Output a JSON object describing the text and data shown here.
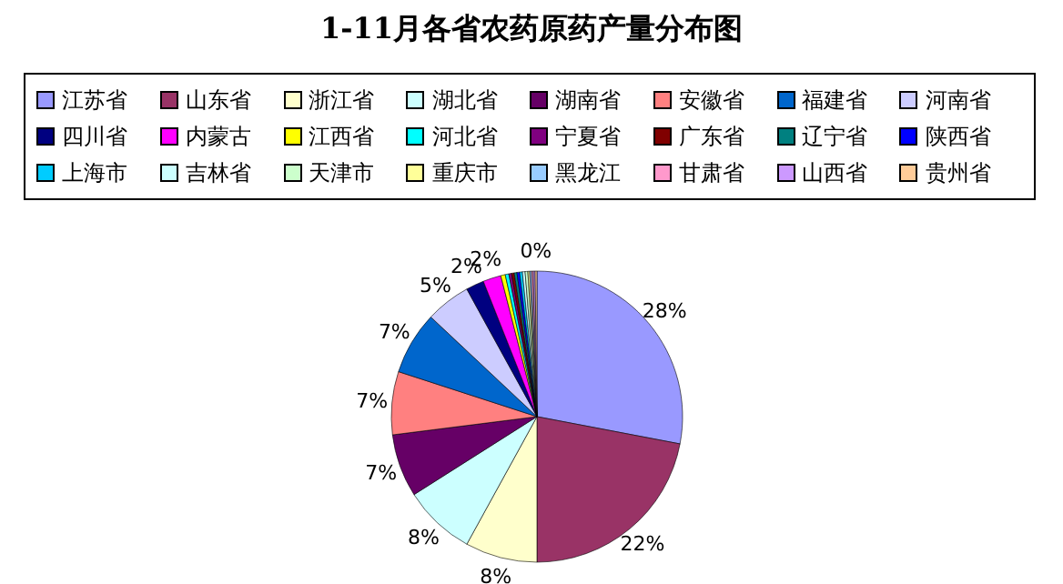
{
  "chart_data": {
    "type": "pie",
    "title": "1-11月各省农药原药产量分布图",
    "categories": [
      "江苏省",
      "山东省",
      "浙江省",
      "湖北省",
      "湖南省",
      "安徽省",
      "福建省",
      "河南省",
      "四川省",
      "内蒙古",
      "江西省",
      "河北省",
      "宁夏省",
      "广东省",
      "辽宁省",
      "陕西省",
      "上海市",
      "吉林省",
      "天津市",
      "重庆市",
      "黑龙江",
      "甘肃省",
      "山西省",
      "贵州省"
    ],
    "values": [
      28,
      22,
      8,
      8,
      7,
      7,
      7,
      5,
      2,
      2,
      0.5,
      0.4,
      0.3,
      0.3,
      0.3,
      0.3,
      0.3,
      0.3,
      0.3,
      0.2,
      0.2,
      0.2,
      0.2,
      0.2
    ],
    "colors": [
      "#9999ff",
      "#993366",
      "#ffffcc",
      "#ccffff",
      "#660066",
      "#ff8080",
      "#0066cc",
      "#ccccff",
      "#000080",
      "#ff00ff",
      "#ffff00",
      "#00ffff",
      "#800080",
      "#800000",
      "#008080",
      "#0000ff",
      "#00ccff",
      "#ccffff",
      "#ccffcc",
      "#ffff99",
      "#99ccff",
      "#ff99cc",
      "#cc99ff",
      "#ffcc99"
    ],
    "value_labels": [
      "28%",
      "22%",
      "8%",
      "8%",
      "7%",
      "7%",
      "7%",
      "5%",
      "2%",
      "2%",
      null,
      null,
      null,
      null,
      null,
      null,
      null,
      null,
      null,
      null,
      null,
      null,
      null,
      "0%"
    ],
    "legend": "top"
  }
}
